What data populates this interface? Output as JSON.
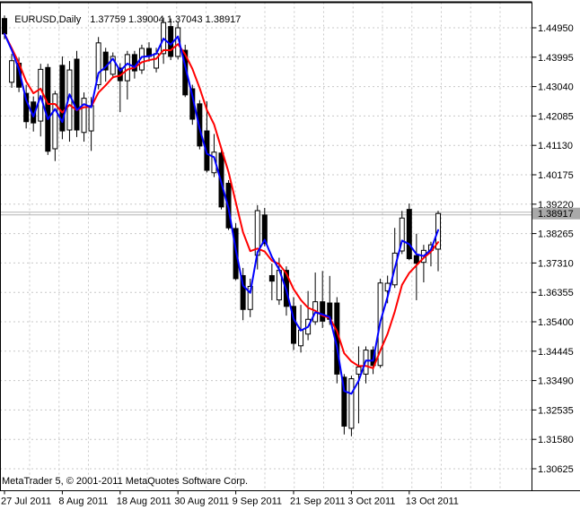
{
  "window": {
    "symbol_period": "EURUSD,Daily",
    "ohlc_text": "1.37759 1.39004 1.37043 1.38917",
    "copyright": "MetaTrader 5, © 2001-2011 MetaQuotes Software Corp."
  },
  "price_tag": "1.38917",
  "colors": {
    "background": "#ffffff",
    "border": "#000000",
    "grid": "#c8c8c8",
    "bull_body": "#ffffff",
    "bear_body": "#000000",
    "candle_outline": "#000000",
    "ma_fast": "#0000ff",
    "ma_slow": "#ff0000",
    "bid_line": "#b3b3b3",
    "tag_bg": "#a9a9a9",
    "tag_text": "#ffffff"
  },
  "chart_data": {
    "type": "candlestick",
    "symbol": "EURUSD",
    "timeframe": "Daily",
    "title": "EURUSD,Daily",
    "current_bar": {
      "open": 1.37759,
      "high": 1.39004,
      "low": 1.37043,
      "close": 1.38917
    },
    "current_price": 1.38917,
    "y_axis": {
      "top_value": 1.4495,
      "step": 0.00955,
      "labels": [
        "1.44950",
        "1.43995",
        "1.43040",
        "1.42085",
        "1.41130",
        "1.40175",
        "1.39220",
        "1.38265",
        "1.37310",
        "1.36355",
        "1.35400",
        "1.34445",
        "1.33490",
        "1.32535",
        "1.31580",
        "1.30625"
      ]
    },
    "x_ticks": [
      {
        "label": "27 Jul 2011",
        "index": 0
      },
      {
        "label": "8 Aug 2011",
        "index": 8
      },
      {
        "label": "18 Aug 2011",
        "index": 16
      },
      {
        "label": "30 Aug 2011",
        "index": 24
      },
      {
        "label": "9 Sep 2011",
        "index": 32
      },
      {
        "label": "21 Sep 2011",
        "index": 40
      },
      {
        "label": "3 Oct 2011",
        "index": 48
      },
      {
        "label": "13 Oct 2011",
        "index": 56
      }
    ],
    "indicators": [
      {
        "name": "ma-fast",
        "type": "lwma",
        "period": 3,
        "color": "#0000ff"
      },
      {
        "name": "ma-slow",
        "type": "lwma",
        "period": 8,
        "color": "#ff0000"
      }
    ],
    "grid": {
      "visible": true,
      "style": "dashed"
    },
    "candles": [
      {
        "o": 1.4525,
        "h": 1.4535,
        "l": 1.4458,
        "c": 1.4475
      },
      {
        "o": 1.4318,
        "h": 1.441,
        "l": 1.43,
        "c": 1.4388
      },
      {
        "o": 1.438,
        "h": 1.4398,
        "l": 1.4286,
        "c": 1.4302
      },
      {
        "o": 1.4282,
        "h": 1.431,
        "l": 1.4168,
        "c": 1.419
      },
      {
        "o": 1.4254,
        "h": 1.4272,
        "l": 1.4158,
        "c": 1.4186
      },
      {
        "o": 1.4192,
        "h": 1.4378,
        "l": 1.4142,
        "c": 1.436
      },
      {
        "o": 1.4366,
        "h": 1.4378,
        "l": 1.4082,
        "c": 1.4094
      },
      {
        "o": 1.4102,
        "h": 1.429,
        "l": 1.4062,
        "c": 1.428
      },
      {
        "o": 1.4373,
        "h": 1.4402,
        "l": 1.4133,
        "c": 1.416
      },
      {
        "o": 1.4163,
        "h": 1.4387,
        "l": 1.4125,
        "c": 1.4358
      },
      {
        "o": 1.4393,
        "h": 1.442,
        "l": 1.414,
        "c": 1.4163
      },
      {
        "o": 1.4155,
        "h": 1.4285,
        "l": 1.4125,
        "c": 1.4266
      },
      {
        "o": 1.416,
        "h": 1.427,
        "l": 1.4095,
        "c": 1.4242
      },
      {
        "o": 1.431,
        "h": 1.4465,
        "l": 1.4295,
        "c": 1.4446
      },
      {
        "o": 1.4416,
        "h": 1.443,
        "l": 1.432,
        "c": 1.4358
      },
      {
        "o": 1.4344,
        "h": 1.4415,
        "l": 1.433,
        "c": 1.4402
      },
      {
        "o": 1.4364,
        "h": 1.438,
        "l": 1.4221,
        "c": 1.4323
      },
      {
        "o": 1.4323,
        "h": 1.442,
        "l": 1.4262,
        "c": 1.4408
      },
      {
        "o": 1.4408,
        "h": 1.442,
        "l": 1.433,
        "c": 1.4355
      },
      {
        "o": 1.4358,
        "h": 1.444,
        "l": 1.4345,
        "c": 1.4428
      },
      {
        "o": 1.4428,
        "h": 1.4448,
        "l": 1.4385,
        "c": 1.4402
      },
      {
        "o": 1.4364,
        "h": 1.443,
        "l": 1.435,
        "c": 1.4411
      },
      {
        "o": 1.4411,
        "h": 1.4528,
        "l": 1.4378,
        "c": 1.4512
      },
      {
        "o": 1.4499,
        "h": 1.4525,
        "l": 1.439,
        "c": 1.4402
      },
      {
        "o": 1.4402,
        "h": 1.4515,
        "l": 1.4392,
        "c": 1.4495
      },
      {
        "o": 1.4422,
        "h": 1.444,
        "l": 1.427,
        "c": 1.4277
      },
      {
        "o": 1.4297,
        "h": 1.431,
        "l": 1.418,
        "c": 1.4198
      },
      {
        "o": 1.4248,
        "h": 1.426,
        "l": 1.41,
        "c": 1.4111
      },
      {
        "o": 1.416,
        "h": 1.4256,
        "l": 1.4025,
        "c": 1.4032
      },
      {
        "o": 1.4024,
        "h": 1.415,
        "l": 1.401,
        "c": 1.4091
      },
      {
        "o": 1.4088,
        "h": 1.41,
        "l": 1.3905,
        "c": 1.3913
      },
      {
        "o": 1.399,
        "h": 1.4,
        "l": 1.3838,
        "c": 1.3845
      },
      {
        "o": 1.3843,
        "h": 1.386,
        "l": 1.3675,
        "c": 1.368
      },
      {
        "o": 1.369,
        "h": 1.3715,
        "l": 1.3545,
        "c": 1.358
      },
      {
        "o": 1.358,
        "h": 1.368,
        "l": 1.3555,
        "c": 1.3655
      },
      {
        "o": 1.3756,
        "h": 1.3919,
        "l": 1.371,
        "c": 1.3901
      },
      {
        "o": 1.3887,
        "h": 1.391,
        "l": 1.3785,
        "c": 1.3794
      },
      {
        "o": 1.369,
        "h": 1.3729,
        "l": 1.361,
        "c": 1.3672
      },
      {
        "o": 1.3611,
        "h": 1.3748,
        "l": 1.3595,
        "c": 1.3707
      },
      {
        "o": 1.3707,
        "h": 1.372,
        "l": 1.356,
        "c": 1.359
      },
      {
        "o": 1.359,
        "h": 1.362,
        "l": 1.3448,
        "c": 1.347
      },
      {
        "o": 1.3462,
        "h": 1.3595,
        "l": 1.344,
        "c": 1.3513
      },
      {
        "o": 1.35,
        "h": 1.364,
        "l": 1.348,
        "c": 1.3548
      },
      {
        "o": 1.354,
        "h": 1.37,
        "l": 1.353,
        "c": 1.3605
      },
      {
        "o": 1.3605,
        "h": 1.3705,
        "l": 1.352,
        "c": 1.3542
      },
      {
        "o": 1.3601,
        "h": 1.3689,
        "l": 1.353,
        "c": 1.3548
      },
      {
        "o": 1.3601,
        "h": 1.362,
        "l": 1.334,
        "c": 1.337
      },
      {
        "o": 1.336,
        "h": 1.337,
        "l": 1.3174,
        "c": 1.3201
      },
      {
        "o": 1.3194,
        "h": 1.3365,
        "l": 1.3168,
        "c": 1.3355
      },
      {
        "o": 1.337,
        "h": 1.346,
        "l": 1.321,
        "c": 1.3393
      },
      {
        "o": 1.337,
        "h": 1.346,
        "l": 1.334,
        "c": 1.3448
      },
      {
        "o": 1.3448,
        "h": 1.346,
        "l": 1.337,
        "c": 1.3398
      },
      {
        "o": 1.3398,
        "h": 1.368,
        "l": 1.339,
        "c": 1.3666
      },
      {
        "o": 1.364,
        "h": 1.369,
        "l": 1.36,
        "c": 1.3665
      },
      {
        "o": 1.366,
        "h": 1.3845,
        "l": 1.365,
        "c": 1.3763
      },
      {
        "o": 1.377,
        "h": 1.39,
        "l": 1.376,
        "c": 1.3877
      },
      {
        "o": 1.3905,
        "h": 1.3924,
        "l": 1.374,
        "c": 1.3745
      },
      {
        "o": 1.3755,
        "h": 1.3826,
        "l": 1.361,
        "c": 1.373
      },
      {
        "o": 1.3733,
        "h": 1.379,
        "l": 1.3668,
        "c": 1.3772
      },
      {
        "o": 1.3772,
        "h": 1.38,
        "l": 1.372,
        "c": 1.379
      },
      {
        "o": 1.37759,
        "h": 1.39004,
        "l": 1.37043,
        "c": 1.38917
      }
    ]
  }
}
